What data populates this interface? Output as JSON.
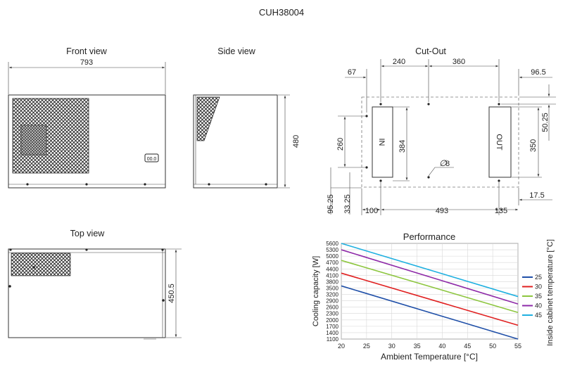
{
  "drawing": {
    "title": "CUH38004",
    "views": {
      "front": {
        "title": "Front view",
        "width_label": "793",
        "display_label": "00.0"
      },
      "side": {
        "title": "Side view",
        "height_label": "480"
      },
      "top": {
        "title": "Top view",
        "depth_label": "450.5"
      },
      "cutout": {
        "title": "Cut-Out",
        "dims": {
          "d67": "67",
          "d240": "240",
          "d360": "360",
          "d96_5": "96.5",
          "d50_25": "50.25",
          "d260": "260",
          "d384": "384",
          "d350": "350",
          "d95_25": "95.25",
          "d33_25": "33.25",
          "d100": "100",
          "d493": "493",
          "d135": "135",
          "d17_5": "17.5",
          "hole": "8"
        },
        "in_label": "IN",
        "out_label": "OUT"
      }
    }
  },
  "chart_data": {
    "type": "line",
    "title": "Performance",
    "xlabel": "Ambient Temperature [°C]",
    "ylabel": "Cooling capacity  [W]",
    "legend_title": "Inside cabinet temperature [°C]",
    "legend_position": "right",
    "grid": true,
    "xlim": [
      20,
      55
    ],
    "ylim": [
      1100,
      5600
    ],
    "x_ticks": [
      "20",
      "25",
      "30",
      "35",
      "40",
      "45",
      "50",
      "55"
    ],
    "y_ticks": [
      "1100",
      "1400",
      "1700",
      "2000",
      "2300",
      "2600",
      "2900",
      "3200",
      "3500",
      "3800",
      "4100",
      "4400",
      "4700",
      "5000",
      "5300",
      "5600"
    ],
    "x": [
      20,
      55
    ],
    "series": [
      {
        "name": "25",
        "color": "#1f4fa8",
        "values": [
          3600,
          1100
        ]
      },
      {
        "name": "30",
        "color": "#e02020",
        "values": [
          4200,
          1750
        ]
      },
      {
        "name": "35",
        "color": "#8dc63f",
        "values": [
          4800,
          2350
        ]
      },
      {
        "name": "40",
        "color": "#8e2aa8",
        "values": [
          5300,
          2750
        ]
      },
      {
        "name": "45",
        "color": "#1fb0e0",
        "values": [
          5600,
          3100
        ]
      }
    ]
  }
}
